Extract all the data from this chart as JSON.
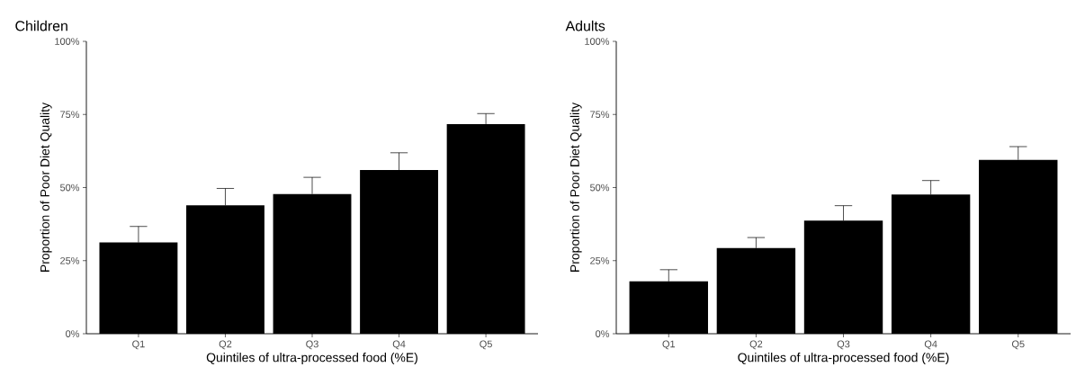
{
  "chart_data": [
    {
      "type": "bar",
      "title": "Children",
      "xlabel": "Quintiles of ultra-processed food (%E)",
      "ylabel": "Proportion of Poor Diet Quality",
      "categories": [
        "Q1",
        "Q2",
        "Q3",
        "Q4",
        "Q5"
      ],
      "values": [
        31.2,
        43.9,
        47.8,
        56.0,
        71.7
      ],
      "errors": [
        [
          31.2,
          36.7
        ],
        [
          43.9,
          49.7
        ],
        [
          47.8,
          53.5
        ],
        [
          56.0,
          61.9
        ],
        [
          71.7,
          75.3
        ]
      ],
      "color": "#000000",
      "ylim": [
        0,
        100
      ],
      "yticks": [
        {
          "value": 0,
          "label": "0%"
        },
        {
          "value": 25,
          "label": "25%"
        },
        {
          "value": 50,
          "label": "50%"
        },
        {
          "value": 75,
          "label": "75%"
        },
        {
          "value": 100,
          "label": "100%"
        }
      ]
    },
    {
      "type": "bar",
      "title": "Adults",
      "xlabel": "Quintiles of ultra-processed food (%E)",
      "ylabel": "Proportion of Poor Diet Quality",
      "categories": [
        "Q1",
        "Q2",
        "Q3",
        "Q4",
        "Q5"
      ],
      "values": [
        17.9,
        29.3,
        38.7,
        47.6,
        59.5
      ],
      "errors": [
        [
          17.9,
          21.9
        ],
        [
          29.3,
          32.9
        ],
        [
          38.7,
          43.8
        ],
        [
          47.6,
          52.4
        ],
        [
          59.5,
          64.0
        ]
      ],
      "color": "#000000",
      "ylim": [
        0,
        100
      ],
      "yticks": [
        {
          "value": 0,
          "label": "0%"
        },
        {
          "value": 25,
          "label": "25%"
        },
        {
          "value": 50,
          "label": "50%"
        },
        {
          "value": 75,
          "label": "75%"
        },
        {
          "value": 100,
          "label": "100%"
        }
      ]
    }
  ]
}
